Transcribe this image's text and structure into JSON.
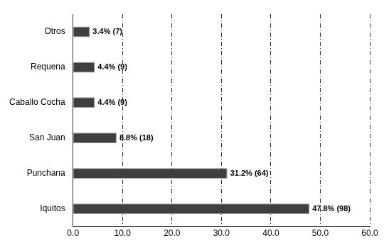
{
  "chart_data": {
    "type": "bar",
    "orientation": "horizontal",
    "categories": [
      "Otros",
      "Requena",
      "Caballo Cocha",
      "San Juan",
      "Punchana",
      "Iquitos"
    ],
    "values": [
      3.4,
      4.4,
      4.4,
      8.8,
      31.2,
      47.8
    ],
    "value_labels": [
      "3.4% (7)",
      "4.4% (9)",
      "4.4% (9)",
      "8.8% (18)",
      "31.2% (64)",
      "47.8% (98)"
    ],
    "data_labels": true,
    "color": "#3f3f3f",
    "xlim": [
      0,
      60
    ],
    "xticks": [
      {
        "value": 0,
        "label": "0.0"
      },
      {
        "value": 10,
        "label": "10.0"
      },
      {
        "value": 20,
        "label": "20.0"
      },
      {
        "value": 30,
        "label": "30.0"
      },
      {
        "value": 40,
        "label": "40.0"
      },
      {
        "value": 50,
        "label": "50.0"
      },
      {
        "value": 60,
        "label": "60.0"
      }
    ],
    "grid": true
  }
}
